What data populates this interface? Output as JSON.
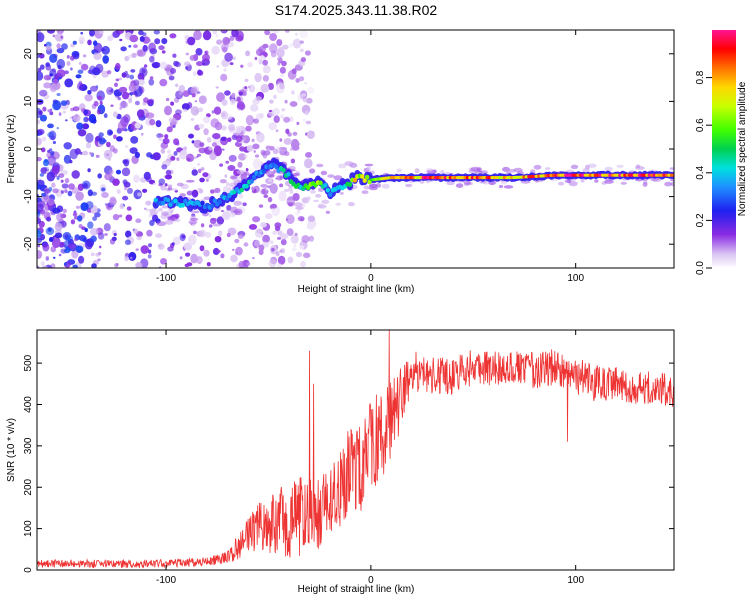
{
  "title": "S174.2025.343.11.38.R02",
  "colors": {
    "line": "#ee3333",
    "background": "#ffffff",
    "axis": "#000000"
  },
  "chart_data": [
    {
      "type": "heatmap",
      "name": "spectrogram",
      "xlabel": "Height of straight line (km)",
      "ylabel": "Frequency (Hz)",
      "xlim": [
        -163,
        148
      ],
      "ylim": [
        -25,
        25
      ],
      "xticks": [
        -100,
        0,
        100
      ],
      "yticks": [
        -20,
        -10,
        0,
        10,
        20
      ],
      "colorbar": {
        "label": "Normalized spectral amplitude",
        "range": [
          0,
          1
        ],
        "ticks": [
          "0.0",
          "0.2",
          "0.4",
          "0.6",
          "0.8"
        ],
        "colormap": "rainbow (white-purple-blue-cyan-green-yellow-red-magenta)"
      },
      "ridge": [
        {
          "x": -100,
          "y": -11,
          "amp": 0.35
        },
        {
          "x": -90,
          "y": -11.5,
          "amp": 0.4
        },
        {
          "x": -80,
          "y": -12,
          "amp": 0.3
        },
        {
          "x": -75,
          "y": -11,
          "amp": 0.35
        },
        {
          "x": -65,
          "y": -9,
          "amp": 0.45
        },
        {
          "x": -55,
          "y": -5,
          "amp": 0.4
        },
        {
          "x": -48,
          "y": -3,
          "amp": 0.35
        },
        {
          "x": -42,
          "y": -5,
          "amp": 0.45
        },
        {
          "x": -35,
          "y": -8,
          "amp": 0.5
        },
        {
          "x": -25,
          "y": -7,
          "amp": 0.7
        },
        {
          "x": -20,
          "y": -9,
          "amp": 0.35
        },
        {
          "x": -10,
          "y": -7,
          "amp": 0.5
        },
        {
          "x": -8,
          "y": -6,
          "amp": 0.85
        },
        {
          "x": 0,
          "y": -6.5,
          "amp": 0.6
        },
        {
          "x": 10,
          "y": -6,
          "amp": 0.75
        },
        {
          "x": 30,
          "y": -6,
          "amp": 0.95
        },
        {
          "x": 50,
          "y": -6,
          "amp": 0.9
        },
        {
          "x": 70,
          "y": -6,
          "amp": 0.85
        },
        {
          "x": 90,
          "y": -5.5,
          "amp": 0.95
        },
        {
          "x": 120,
          "y": -5.5,
          "amp": 0.95
        },
        {
          "x": 148,
          "y": -5.5,
          "amp": 0.95
        }
      ]
    },
    {
      "type": "line",
      "name": "snr",
      "xlabel": "Height of straight line (km)",
      "ylabel": "SNR (10 * v/v)",
      "xlim": [
        -163,
        148
      ],
      "ylim": [
        0,
        580
      ],
      "xticks": [
        -100,
        0,
        100
      ],
      "yticks": [
        0,
        100,
        200,
        300,
        400,
        500
      ],
      "series": [
        {
          "name": "SNR",
          "x": [
            -163,
            -140,
            -120,
            -100,
            -80,
            -70,
            -62,
            -55,
            -50,
            -45,
            -40,
            -35,
            -30,
            -25,
            -20,
            -15,
            -10,
            -5,
            0,
            5,
            10,
            15,
            20,
            25,
            30,
            40,
            50,
            60,
            70,
            80,
            90,
            95,
            100,
            110,
            120,
            130,
            140,
            148
          ],
          "y": [
            15,
            15,
            15,
            15,
            20,
            30,
            70,
            110,
            110,
            120,
            115,
            130,
            140,
            140,
            160,
            200,
            250,
            240,
            300,
            330,
            360,
            410,
            480,
            480,
            470,
            470,
            490,
            490,
            490,
            480,
            490,
            470,
            470,
            450,
            450,
            440,
            440,
            430
          ],
          "noise": [
            10,
            10,
            10,
            10,
            10,
            15,
            40,
            60,
            70,
            80,
            90,
            100,
            80,
            90,
            80,
            100,
            110,
            110,
            110,
            110,
            100,
            80,
            50,
            50,
            45,
            45,
            45,
            45,
            45,
            45,
            45,
            45,
            45,
            45,
            40,
            40,
            40,
            40
          ],
          "spikes": [
            {
              "x": -30,
              "y": 530
            },
            {
              "x": -28,
              "y": 450
            },
            {
              "x": 9,
              "y": 580
            },
            {
              "x": 96,
              "y": 310
            }
          ]
        }
      ]
    }
  ]
}
